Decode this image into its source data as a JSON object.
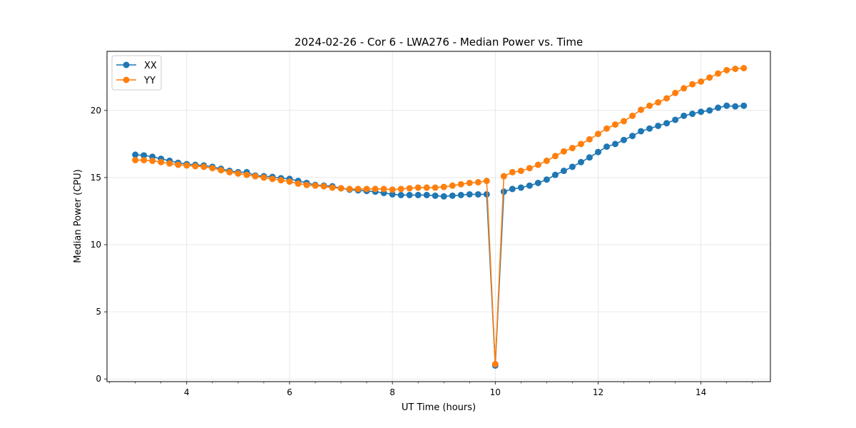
{
  "chart_data": {
    "type": "line",
    "title": "2024-02-26 - Cor 6 - LWA276 - Median Power vs. Time",
    "xlabel": "UT Time (hours)",
    "ylabel": "Median Power (CPU)",
    "xlim": [
      2.45,
      15.35
    ],
    "ylim": [
      -0.2,
      24.4
    ],
    "xticks": [
      4,
      6,
      8,
      10,
      12,
      14
    ],
    "xticks_minor": [
      2.5,
      3,
      3.5,
      4.5,
      5,
      5.5,
      6.5,
      7,
      7.5,
      8.5,
      9,
      9.5,
      10.5,
      11,
      11.5,
      12.5,
      13,
      13.5,
      14.5,
      15
    ],
    "yticks": [
      0,
      5,
      10,
      15,
      20
    ],
    "grid": true,
    "legend_position": "top-left",
    "x": [
      3.0,
      3.167,
      3.333,
      3.5,
      3.667,
      3.833,
      4.0,
      4.167,
      4.333,
      4.5,
      4.667,
      4.833,
      5.0,
      5.167,
      5.333,
      5.5,
      5.667,
      5.833,
      6.0,
      6.167,
      6.333,
      6.5,
      6.667,
      6.833,
      7.0,
      7.167,
      7.333,
      7.5,
      7.667,
      7.833,
      8.0,
      8.167,
      8.333,
      8.5,
      8.667,
      8.833,
      9.0,
      9.167,
      9.333,
      9.5,
      9.667,
      9.833,
      10.0,
      10.167,
      10.333,
      10.5,
      10.667,
      10.833,
      11.0,
      11.167,
      11.333,
      11.5,
      11.667,
      11.833,
      12.0,
      12.167,
      12.333,
      12.5,
      12.667,
      12.833,
      13.0,
      13.167,
      13.333,
      13.5,
      13.667,
      13.833,
      14.0,
      14.167,
      14.333,
      14.5,
      14.667,
      14.833
    ],
    "series": [
      {
        "name": "XX",
        "color": "#1f77b4",
        "values": [
          16.7,
          16.65,
          16.55,
          16.4,
          16.25,
          16.1,
          16.0,
          15.95,
          15.9,
          15.8,
          15.65,
          15.5,
          15.4,
          15.4,
          15.15,
          15.1,
          15.05,
          14.95,
          14.9,
          14.75,
          14.6,
          14.45,
          14.4,
          14.35,
          14.2,
          14.1,
          14.05,
          14.0,
          13.95,
          13.85,
          13.75,
          13.7,
          13.7,
          13.7,
          13.7,
          13.65,
          13.6,
          13.65,
          13.7,
          13.75,
          13.75,
          13.75,
          1.0,
          13.95,
          14.15,
          14.25,
          14.4,
          14.6,
          14.85,
          15.2,
          15.5,
          15.8,
          16.15,
          16.5,
          16.9,
          17.3,
          17.5,
          17.8,
          18.1,
          18.45,
          18.65,
          18.85,
          19.05,
          19.3,
          19.6,
          19.75,
          19.9,
          20.0,
          20.2,
          20.35,
          20.3,
          20.35
        ]
      },
      {
        "name": "YY",
        "color": "#ff7f0e",
        "values": [
          16.3,
          16.3,
          16.25,
          16.15,
          16.05,
          15.95,
          15.9,
          15.85,
          15.8,
          15.7,
          15.55,
          15.4,
          15.3,
          15.2,
          15.1,
          15.0,
          14.9,
          14.8,
          14.7,
          14.55,
          14.45,
          14.4,
          14.35,
          14.25,
          14.2,
          14.15,
          14.15,
          14.15,
          14.15,
          14.15,
          14.1,
          14.15,
          14.2,
          14.25,
          14.25,
          14.25,
          14.3,
          14.4,
          14.5,
          14.6,
          14.65,
          14.75,
          1.1,
          15.1,
          15.4,
          15.5,
          15.7,
          15.95,
          16.25,
          16.6,
          16.95,
          17.2,
          17.5,
          17.85,
          18.25,
          18.65,
          18.95,
          19.2,
          19.6,
          20.05,
          20.35,
          20.6,
          20.9,
          21.3,
          21.65,
          21.95,
          22.15,
          22.45,
          22.75,
          23.0,
          23.1,
          23.15
        ]
      }
    ]
  }
}
